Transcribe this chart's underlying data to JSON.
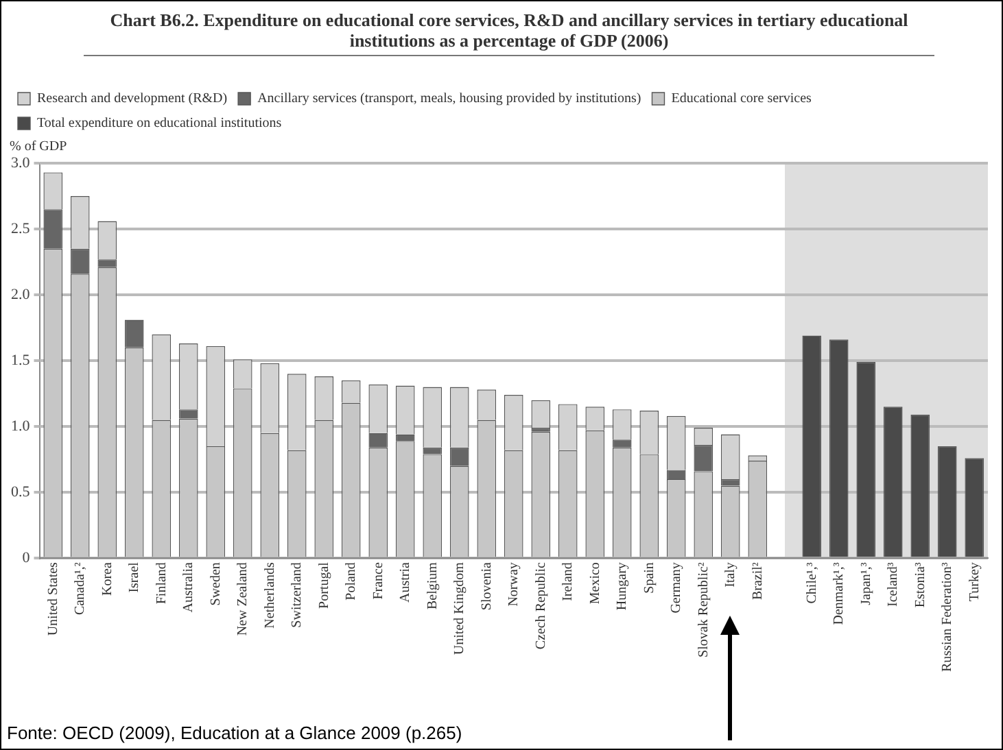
{
  "chart_data": {
    "type": "bar",
    "title": "Chart B6.2. Expenditure on educational core services, R&D and ancillary services in tertiary educational institutions as a percentage of GDP (2006)",
    "ylabel": "% of GDP",
    "categories": [
      "United States",
      "Canada¹,²",
      "Korea",
      "Israel",
      "Finland",
      "Australia",
      "Sweden",
      "New Zealand",
      "Netherlands",
      "Switzerland",
      "Portugal",
      "Poland",
      "France",
      "Austria",
      "Belgium",
      "United Kingdom",
      "Slovenia",
      "Norway",
      "Czech Republic",
      "Ireland",
      "Mexico",
      "Hungary",
      "Spain",
      "Germany",
      "Slovak Republic²",
      "Italy",
      "Brazil²",
      null,
      "Chile¹,³",
      "Denmark¹,³",
      "Japan¹,³",
      "Iceland³",
      "Estonia³",
      "Russian Federation³",
      "Turkey"
    ],
    "stacked": true,
    "series": [
      {
        "name": "Educational core services",
        "color": "#c6c6c6",
        "values": [
          2.35,
          2.16,
          2.21,
          1.6,
          1.05,
          1.06,
          0.85,
          1.29,
          0.95,
          0.82,
          1.05,
          1.18,
          0.84,
          0.89,
          0.79,
          0.7,
          1.05,
          0.82,
          0.96,
          0.82,
          0.97,
          0.84,
          0.79,
          0.6,
          0.66,
          0.55,
          0.74,
          null,
          null,
          null,
          null,
          null,
          null,
          null,
          null
        ]
      },
      {
        "name": "Ancillary services (transport, meals, housing provided by institutions)",
        "color": "#666666",
        "values": [
          0.3,
          0.19,
          0.06,
          0.21,
          null,
          0.07,
          null,
          null,
          null,
          null,
          null,
          null,
          0.11,
          0.05,
          0.05,
          0.14,
          null,
          null,
          0.03,
          null,
          null,
          0.06,
          null,
          0.07,
          0.2,
          0.05,
          null,
          null,
          null,
          null,
          null,
          null,
          null,
          null,
          null
        ]
      },
      {
        "name": "Research and development (R&D)",
        "color": "#d2d2d2",
        "values": [
          0.28,
          0.4,
          0.29,
          null,
          0.65,
          0.5,
          0.76,
          0.22,
          0.53,
          0.58,
          0.33,
          0.17,
          0.37,
          0.37,
          0.46,
          0.46,
          0.23,
          0.42,
          0.21,
          0.35,
          0.18,
          0.23,
          0.33,
          0.41,
          0.13,
          0.34,
          0.04,
          null,
          null,
          null,
          null,
          null,
          null,
          null,
          null
        ]
      },
      {
        "name": "Total expenditure on educational institutions",
        "color": "#4a4a4a",
        "values": [
          null,
          null,
          null,
          null,
          null,
          null,
          null,
          null,
          null,
          null,
          null,
          null,
          null,
          null,
          null,
          null,
          null,
          null,
          null,
          null,
          null,
          null,
          null,
          null,
          null,
          null,
          null,
          null,
          1.69,
          1.66,
          1.49,
          1.15,
          1.09,
          0.85,
          0.76
        ]
      }
    ],
    "ylim": [
      0,
      3
    ],
    "yticks": [
      0,
      0.5,
      {
        "value": 1,
        "label": "1.0"
      },
      1.5,
      {
        "value": 2,
        "label": "2.0"
      },
      2.5,
      {
        "value": 3,
        "label": "3.0"
      }
    ],
    "grid": "y",
    "legend": "top",
    "annotations": [
      "Fonte: OECD (2009), Education at a Glance 2009 (p.265)"
    ]
  }
}
